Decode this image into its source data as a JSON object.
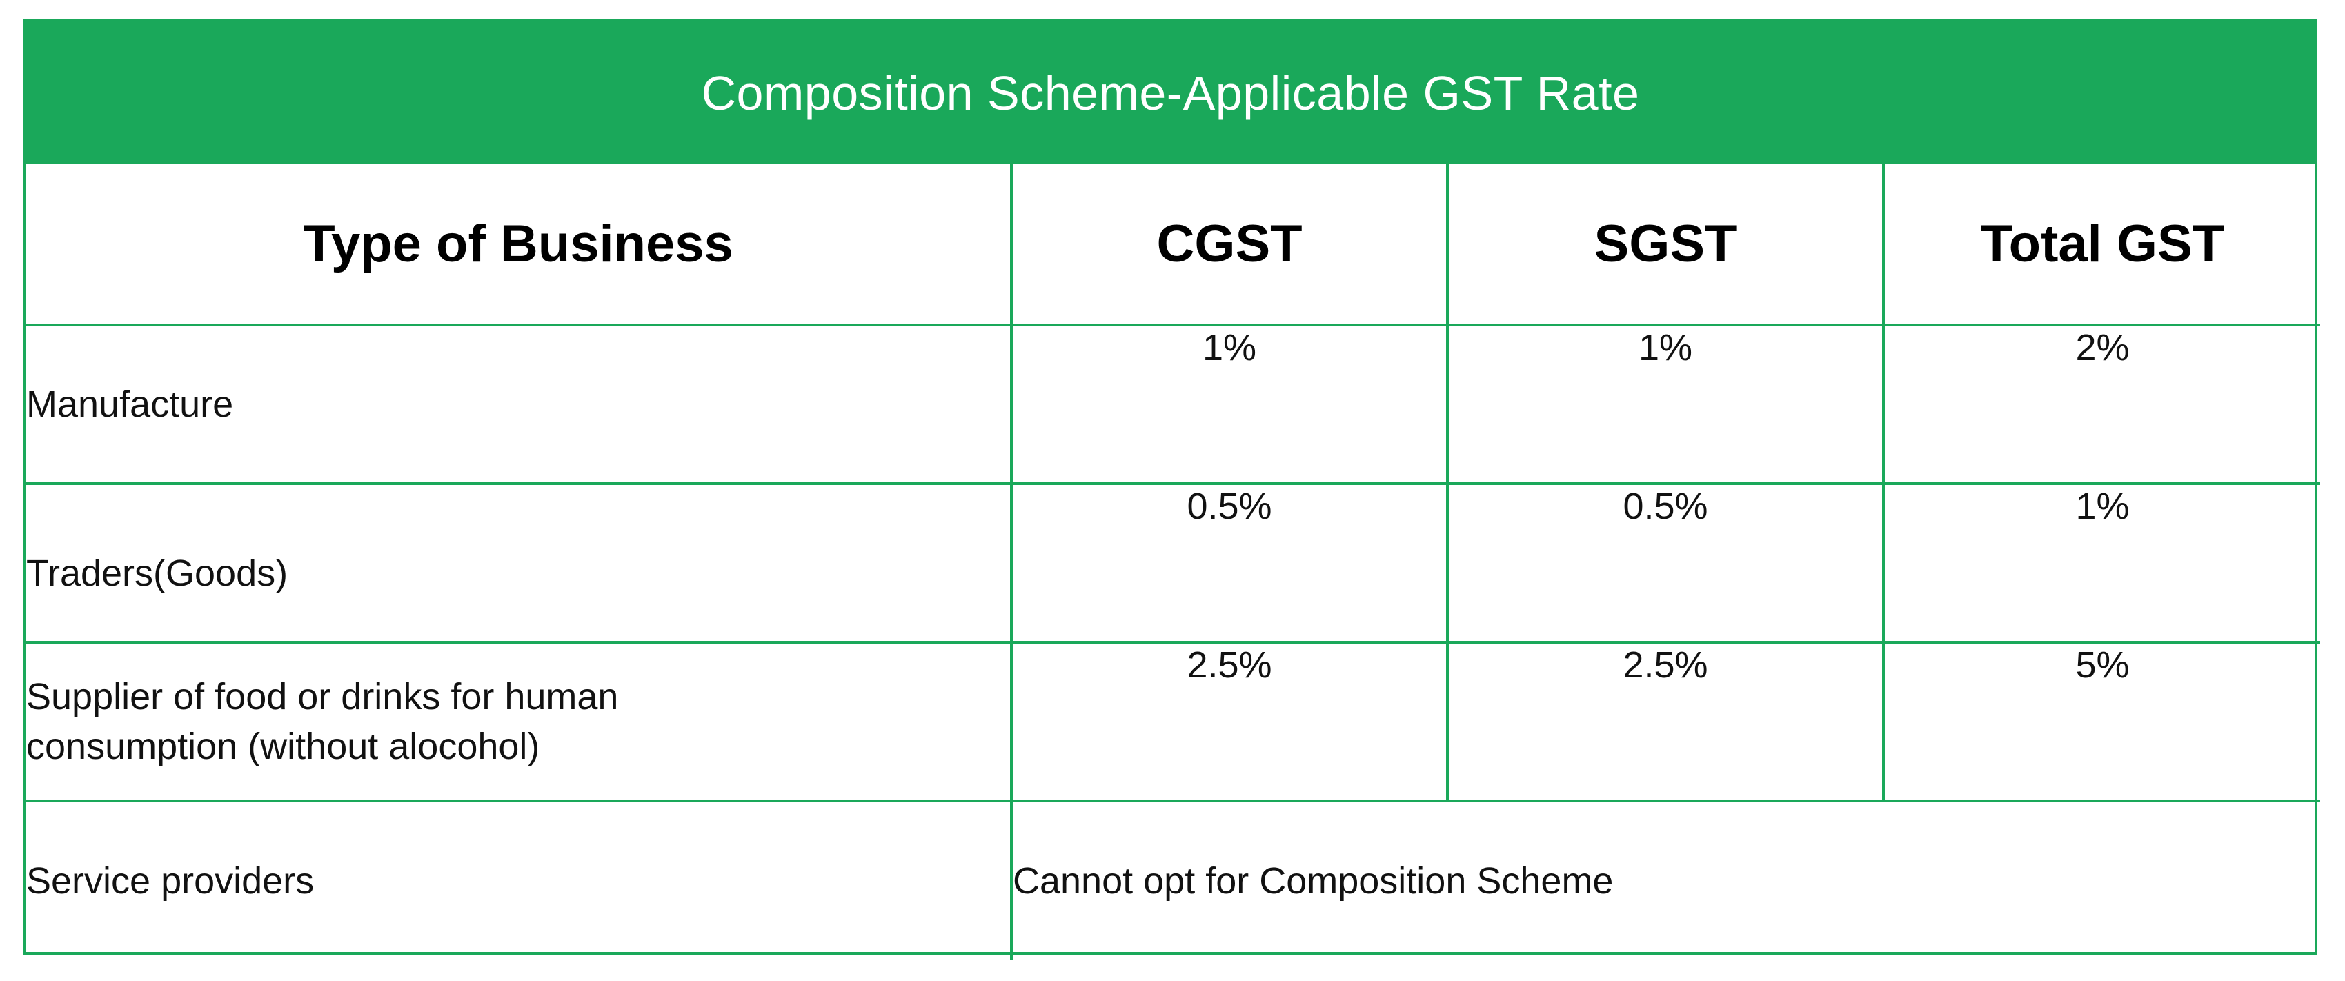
{
  "table": {
    "title": "Composition Scheme-Applicable GST Rate",
    "headers": [
      "Type of Business",
      "CGST",
      "SGST",
      "Total GST"
    ],
    "rows": [
      {
        "business": "Manufacture",
        "cgst": "1%",
        "sgst": "1%",
        "total": "2%"
      },
      {
        "business": "Traders(Goods)",
        "cgst": "0.5%",
        "sgst": "0.5%",
        "total": "1%"
      },
      {
        "business_line1": "Supplier of food or drinks for human",
        "business_line2": "consumption (without alocohol)",
        "cgst": "2.5%",
        "sgst": "2.5%",
        "total": "5%"
      },
      {
        "business": "Service providers",
        "note": "Cannot opt for Composition Scheme"
      }
    ]
  },
  "colors": {
    "accent": "#1aa85a",
    "title_text": "#ffffff",
    "body_text": "#111111"
  }
}
